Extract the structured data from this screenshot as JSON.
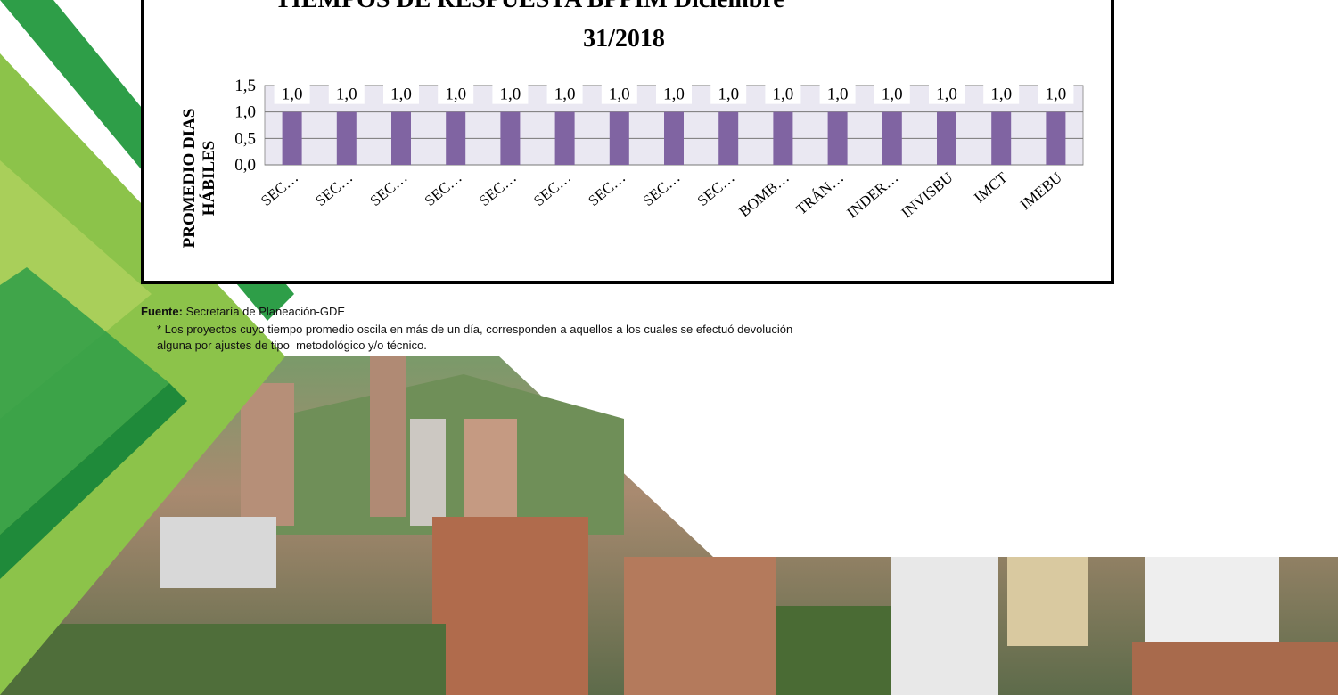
{
  "chart_data": {
    "type": "bar",
    "title": [
      "TIEMPOS DE RESPUESTA BPPIM Diciembre",
      "31/2018"
    ],
    "ylabel": [
      "PROMEDIO DIAS",
      "HÁBILES"
    ],
    "categories": [
      "SEC…",
      "SEC…",
      "SEC…",
      "SEC…",
      "SEC…",
      "SEC…",
      "SEC…",
      "SEC…",
      "SEC…",
      "BOMB…",
      "TRÁN…",
      "INDER…",
      "INVISBU",
      "IMCT",
      "IMEBU"
    ],
    "values": [
      1,
      1,
      1,
      1,
      1,
      1,
      1,
      1,
      1,
      1,
      1,
      1,
      1,
      1,
      1
    ],
    "value_labels": [
      "1,0",
      "1,0",
      "1,0",
      "1,0",
      "1,0",
      "1,0",
      "1,0",
      "1,0",
      "1,0",
      "1,0",
      "1,0",
      "1,0",
      "1,0",
      "1,0",
      "1,0"
    ],
    "color": "#8064a2",
    "ylim": [
      0,
      1.5
    ],
    "yticks": [
      {
        "value": 0,
        "label": "0,0"
      },
      {
        "value": 0.5,
        "label": "0,5"
      },
      {
        "value": 1,
        "label": "1,0"
      },
      {
        "value": 1.5,
        "label": "1,5"
      }
    ],
    "grid": true
  },
  "source": {
    "label": "Fuente:",
    "text": "Secretaría de Planeación-GDE"
  },
  "note": [
    "* Los proyectos cuyo tiempo promedio oscila en más de un día, corresponden a aquellos a los cuales se efectuó devolución",
    "alguna por ajustes de tipo  metodológico y/o técnico."
  ]
}
